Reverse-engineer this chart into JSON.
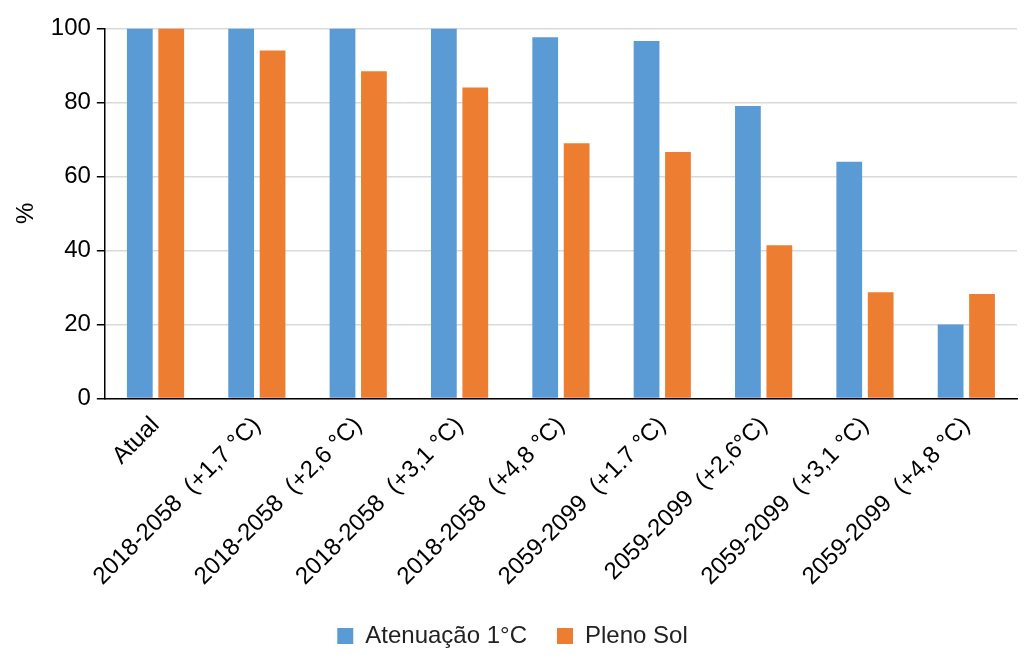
{
  "chart_data": {
    "type": "bar",
    "ylabel": "%",
    "categories": [
      "Atual",
      "2018-2058  (+1,7 °C)",
      "2018-2058  (+2,6 °C)",
      "2018-2058  (+3,1 °C)",
      "2018-2058  (+4,8 °C)",
      "2059-2099  (+1.7 °C)",
      "2059-2099  (+2,6°C)",
      "2059-2099  (+3,1 °C)",
      "2059-2099  (+4,8 °C)"
    ],
    "series": [
      {
        "name": "Atenuação 1°C",
        "color": "#5b9bd5",
        "values": [
          100,
          100,
          100,
          100,
          97.6,
          96.6,
          79,
          64,
          20
        ]
      },
      {
        "name": "Pleno Sol",
        "color": "#ed7d31",
        "values": [
          100,
          94,
          88.4,
          84,
          69,
          66.6,
          41.4,
          28.7,
          28.2
        ]
      }
    ],
    "ylim": [
      0,
      100
    ],
    "yticks": [
      0,
      20,
      40,
      60,
      80,
      100
    ],
    "grid": "y",
    "legend": "bottom"
  }
}
